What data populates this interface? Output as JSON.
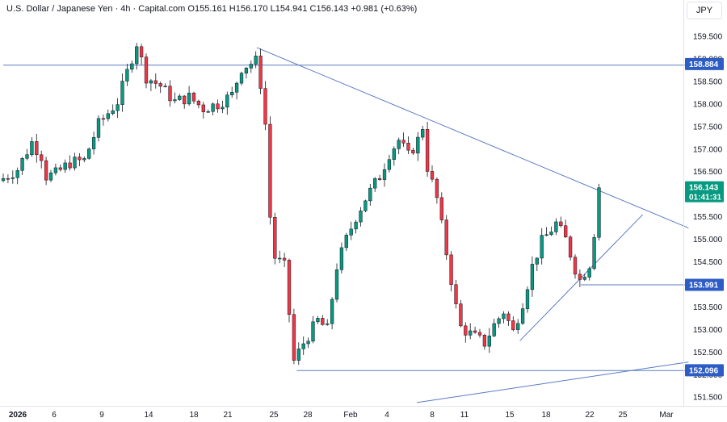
{
  "header": {
    "symbol": "U.S. Dollar / Japanese Yen · 4h · Capital.com",
    "open": "O155.161",
    "high": "H156.170",
    "low": "L154.941",
    "close": "C156.143",
    "change": "+0.981 (+0.63%)"
  },
  "currency_button": "JPY",
  "colors": {
    "up": "#089981",
    "down": "#f23645",
    "line": "#5b7bc4",
    "tag": "#2d5cc4",
    "price_tag": "#089981"
  },
  "chart_data": {
    "type": "candlestick",
    "title": "",
    "y_ticks": [
      "159.500",
      "159.000",
      "158.500",
      "158.000",
      "157.500",
      "157.000",
      "156.500",
      "156.000",
      "155.500",
      "155.000",
      "154.500",
      "154.000",
      "153.500",
      "153.000",
      "152.500",
      "152.000",
      "151.500"
    ],
    "x_ticks": [
      "2026",
      "6",
      "9",
      "14",
      "18",
      "21",
      "25",
      "28",
      "Feb",
      "4",
      "8",
      "11",
      "15",
      "18",
      "22",
      "25",
      "Mar"
    ],
    "ylim": [
      151.3,
      159.9
    ],
    "price_tags": [
      {
        "label": "158.884",
        "value": 158.884
      },
      {
        "label": "153.991",
        "value": 153.991
      },
      {
        "label": "152.096",
        "value": 152.096
      }
    ],
    "last_price": {
      "label": "156.143",
      "countdown": "01:41:31",
      "value": 156.143
    },
    "trend_lines": [
      {
        "name": "resistance",
        "from": [
          0,
          158.86
        ],
        "to": [
          143.8,
          158.86
        ]
      },
      {
        "name": "descending",
        "from": [
          53.2,
          159.25
        ],
        "to": [
          143.8,
          155.25
        ]
      },
      {
        "name": "ascending",
        "from": [
          108.4,
          152.75
        ],
        "to": [
          134.2,
          155.55
        ]
      },
      {
        "name": "support-low",
        "from": [
          61.6,
          152.09
        ],
        "to": [
          143.8,
          152.09
        ]
      },
      {
        "name": "support-mid",
        "from": [
          121.2,
          153.99
        ],
        "to": [
          143.8,
          153.99
        ]
      },
      {
        "name": "lower-trend",
        "from": [
          86.8,
          151.38
        ],
        "to": [
          143.8,
          152.28
        ]
      }
    ],
    "anchors": [
      [
        0,
        156.35
      ],
      [
        3,
        156.55
      ],
      [
        6,
        157.15
      ],
      [
        8,
        156.85
      ],
      [
        9,
        156.4
      ],
      [
        11,
        156.45
      ],
      [
        14,
        156.7
      ],
      [
        17,
        156.75
      ],
      [
        20,
        157.55
      ],
      [
        24,
        158.05
      ],
      [
        28,
        159.35
      ],
      [
        30,
        158.6
      ],
      [
        33,
        158.4
      ],
      [
        36,
        158.05
      ],
      [
        39,
        158.15
      ],
      [
        42,
        157.9
      ],
      [
        45,
        158.0
      ],
      [
        48,
        158.2
      ],
      [
        50,
        158.8
      ],
      [
        53,
        158.95
      ],
      [
        54,
        158.45
      ],
      [
        55,
        157.55
      ],
      [
        56,
        155.5
      ],
      [
        57,
        154.6
      ],
      [
        59,
        154.4
      ],
      [
        61,
        152.3
      ],
      [
        63,
        152.7
      ],
      [
        66,
        153.2
      ],
      [
        68,
        153.0
      ],
      [
        70,
        154.4
      ],
      [
        72,
        155.0
      ],
      [
        74,
        155.5
      ],
      [
        76,
        155.9
      ],
      [
        79,
        156.4
      ],
      [
        81,
        156.9
      ],
      [
        83,
        157.2
      ],
      [
        85,
        156.85
      ],
      [
        87,
        157.2
      ],
      [
        88,
        157.5
      ],
      [
        89,
        156.6
      ],
      [
        91,
        155.9
      ],
      [
        93,
        154.7
      ],
      [
        95,
        153.5
      ],
      [
        96,
        153.05
      ],
      [
        98,
        152.9
      ],
      [
        101,
        152.7
      ],
      [
        103,
        153.1
      ],
      [
        105,
        153.4
      ],
      [
        107,
        152.95
      ],
      [
        109,
        153.6
      ],
      [
        111,
        154.4
      ],
      [
        113,
        154.95
      ],
      [
        116,
        155.35
      ],
      [
        118,
        155.0
      ],
      [
        120,
        154.35
      ],
      [
        121,
        154.1
      ],
      [
        123,
        154.45
      ],
      [
        124,
        155.15
      ],
      [
        125,
        156.14
      ]
    ]
  }
}
